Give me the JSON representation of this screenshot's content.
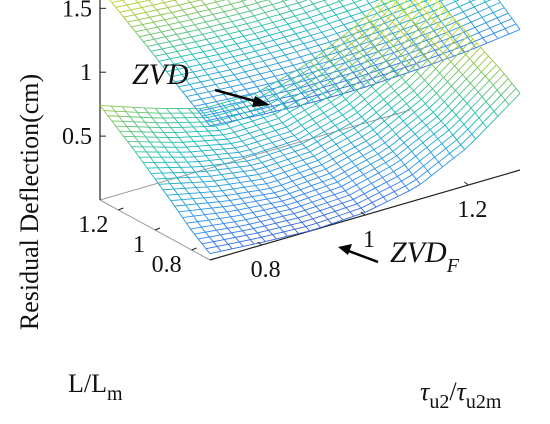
{
  "chart_data": {
    "type": "surface3d",
    "title": "",
    "zlabel": "Residual Deflection(cm)",
    "ylabel": {
      "main": "L/L",
      "sub": "m"
    },
    "xlabel": {
      "tau": "τ",
      "sub1": "u2",
      "slash": "/",
      "sub2": "u2m"
    },
    "x_axis": {
      "name": "τu2/τu2m",
      "range": [
        0.7,
        1.3
      ],
      "ticks": [
        0.8,
        1,
        1.2
      ],
      "tick_labels": [
        "0.8",
        "1",
        "1.2"
      ]
    },
    "y_axis": {
      "name": "L/Lm",
      "range": [
        0.7,
        1.3
      ],
      "ticks": [
        0.8,
        1,
        1.2
      ],
      "tick_labels": [
        "0.8",
        "1",
        "1.2"
      ]
    },
    "z_axis": {
      "name": "Residual Deflection(cm)",
      "range": [
        0,
        1.8
      ],
      "ticks": [
        0.5,
        1,
        1.5
      ],
      "tick_labels": [
        "0.5",
        "1",
        "1.5"
      ]
    },
    "grid_points": {
      "x": [
        0.7,
        0.8,
        0.9,
        1.0,
        1.1,
        1.2,
        1.3
      ],
      "y": [
        0.7,
        0.8,
        0.9,
        1.0,
        1.1,
        1.2,
        1.3
      ]
    },
    "surfaces": [
      {
        "annotation": {
          "text": "ZVD",
          "sub": ""
        },
        "colormap": "parula",
        "z": [
          [
            1.05,
            1.02,
            1.0,
            1.0,
            1.02,
            1.05,
            1.1
          ],
          [
            1.15,
            1.12,
            1.1,
            1.1,
            1.12,
            1.16,
            1.22
          ],
          [
            1.25,
            1.22,
            1.21,
            1.21,
            1.23,
            1.27,
            1.33
          ],
          [
            1.36,
            1.33,
            1.31,
            1.31,
            1.33,
            1.37,
            1.44
          ],
          [
            1.46,
            1.43,
            1.41,
            1.41,
            1.43,
            1.47,
            1.54
          ],
          [
            1.56,
            1.53,
            1.51,
            1.51,
            1.53,
            1.57,
            1.64
          ],
          [
            1.66,
            1.63,
            1.61,
            1.61,
            1.63,
            1.67,
            1.74
          ]
        ]
      },
      {
        "annotation": {
          "text": "ZVD",
          "sub": "F"
        },
        "colormap": "parula",
        "z": [
          [
            0.05,
            0.02,
            0.0,
            0.02,
            0.1,
            0.3,
            0.6
          ],
          [
            0.15,
            0.1,
            0.08,
            0.1,
            0.2,
            0.4,
            0.7
          ],
          [
            0.28,
            0.2,
            0.15,
            0.18,
            0.28,
            0.48,
            0.78
          ],
          [
            0.4,
            0.3,
            0.24,
            0.26,
            0.36,
            0.56,
            0.86
          ],
          [
            0.52,
            0.4,
            0.32,
            0.33,
            0.44,
            0.64,
            0.93
          ],
          [
            0.63,
            0.5,
            0.4,
            0.41,
            0.52,
            0.72,
            1.0
          ],
          [
            0.74,
            0.6,
            0.48,
            0.48,
            0.59,
            0.79,
            1.07
          ]
        ]
      }
    ],
    "grid": false,
    "legend": "none"
  }
}
